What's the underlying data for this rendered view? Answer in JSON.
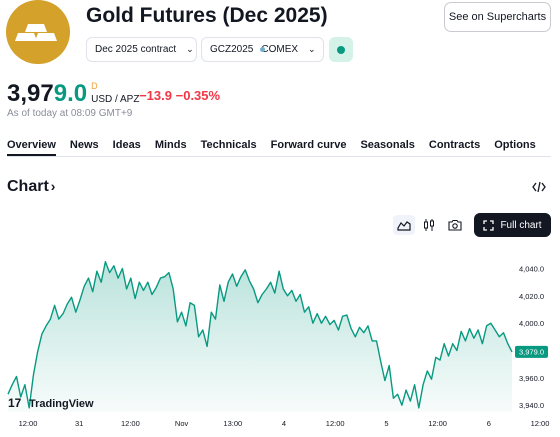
{
  "header": {
    "title": "Gold Futures (Dec 2025)",
    "supercharts_label": "See on Supercharts",
    "contract_selector": "Dec 2025 contract",
    "symbol": "GCZ2025",
    "exchange": "COMEX",
    "logo_icon": "gold-bars-icon",
    "accent_color": "#089981"
  },
  "quote": {
    "price_main": "3,97",
    "price_tail": "9.0",
    "delay_flag": "D",
    "unit": "USD / APZ",
    "change": "−13.9",
    "change_pct": "−0.35%",
    "as_of": "As of today at 08:09 GMT+9",
    "negative_color": "#f23645"
  },
  "tabs": [
    "Overview",
    "News",
    "Ideas",
    "Minds",
    "Technicals",
    "Forward curve",
    "Seasonals",
    "Contracts",
    "Options"
  ],
  "chart_section": {
    "heading": "Chart",
    "fullchart_label": "Full chart",
    "watermark": "TradingView",
    "last_price_label": "3,979.0"
  },
  "chart_data": {
    "type": "area",
    "ylim": [
      3935,
      4055
    ],
    "y_ticks": [
      "4,040.0",
      "4,020.0",
      "4,000.0",
      "3,980.0",
      "3,960.0",
      "3,940.0"
    ],
    "x_tick_labels": [
      "12:00",
      "31",
      "12:00",
      "Nov",
      "13:00",
      "4",
      "12:00",
      "5",
      "12:00",
      "6",
      "12:00"
    ],
    "values": [
      3948,
      3955,
      3961,
      3946,
      3955,
      3938,
      3962,
      3979,
      3992,
      3998,
      4003,
      4013,
      4003,
      4007,
      4014,
      4019,
      4008,
      4017,
      4027,
      4033,
      4023,
      4038,
      4030,
      4045,
      4037,
      4042,
      4033,
      4040,
      4025,
      4033,
      4018,
      4030,
      4024,
      4030,
      4021,
      4026,
      4033,
      4034,
      4037,
      4025,
      4001,
      4008,
      3998,
      4015,
      4013,
      3990,
      3995,
      3983,
      4008,
      4003,
      4028,
      4016,
      4030,
      4036,
      4027,
      4034,
      4039,
      4031,
      4025,
      4015,
      4021,
      4025,
      4030,
      4022,
      4038,
      4025,
      4020,
      4024,
      4016,
      4021,
      4008,
      4012,
      4000,
      4007,
      4000,
      4005,
      3999,
      4002,
      3995,
      4005,
      4006,
      3996,
      3990,
      3997,
      3993,
      3998,
      3987,
      3987,
      3972,
      3958,
      3969,
      3945,
      3948,
      3940,
      3951,
      3943,
      3955,
      3938,
      3955,
      3965,
      3959,
      3975,
      3973,
      3985,
      3976,
      3985,
      3980,
      3994,
      3987,
      3996,
      3989,
      3995,
      3985,
      3998,
      4000,
      3995,
      3990,
      3993,
      3985,
      3979
    ],
    "line_color": "#089981"
  }
}
